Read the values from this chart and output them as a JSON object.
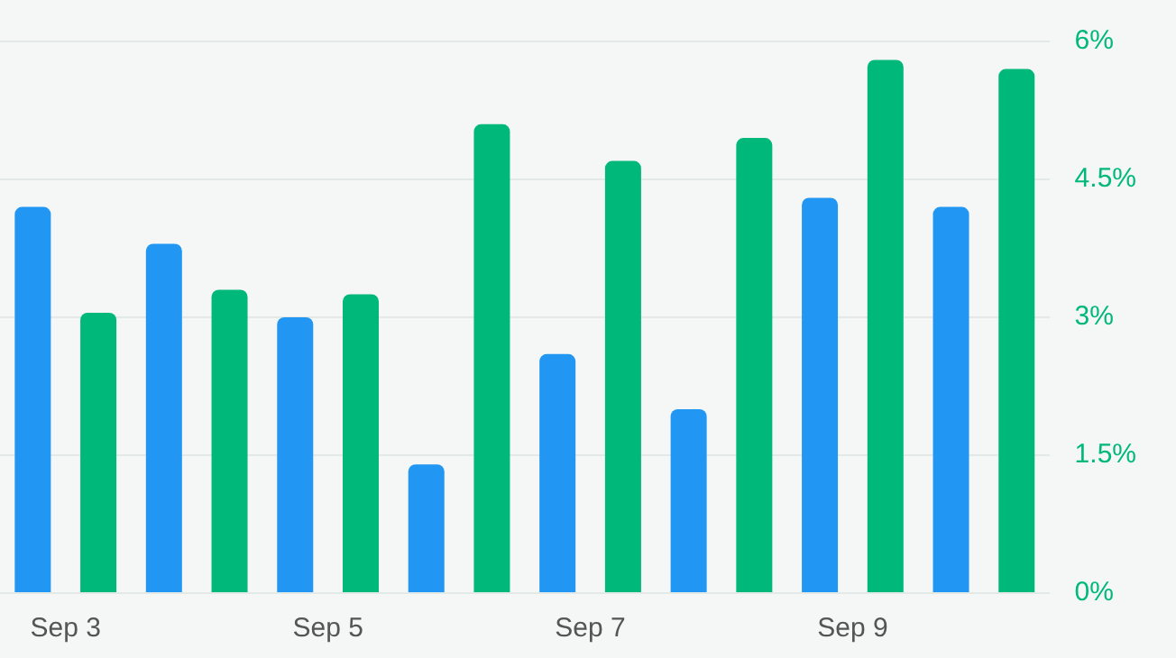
{
  "chart_data": {
    "type": "bar",
    "categories": [
      "Sep 3",
      null,
      "Sep 5",
      null,
      "Sep 7",
      null,
      "Sep 9",
      null
    ],
    "series": [
      {
        "color": "#2196f3",
        "values": [
          4.2,
          3.8,
          3.0,
          1.4,
          2.6,
          2.0,
          4.3,
          4.2
        ]
      },
      {
        "color": "#00b87a",
        "values": [
          3.05,
          3.3,
          3.25,
          5.1,
          4.7,
          4.95,
          5.8,
          5.7
        ]
      }
    ],
    "ylim": [
      0,
      6
    ],
    "yticks": [
      {
        "value": 0,
        "label": "0%"
      },
      {
        "value": 1.5,
        "label": "1.5%"
      },
      {
        "value": 3,
        "label": "3%"
      },
      {
        "value": 4.5,
        "label": "4.5%"
      },
      {
        "value": 6,
        "label": "6%"
      }
    ],
    "grid": "y",
    "legend": false
  }
}
